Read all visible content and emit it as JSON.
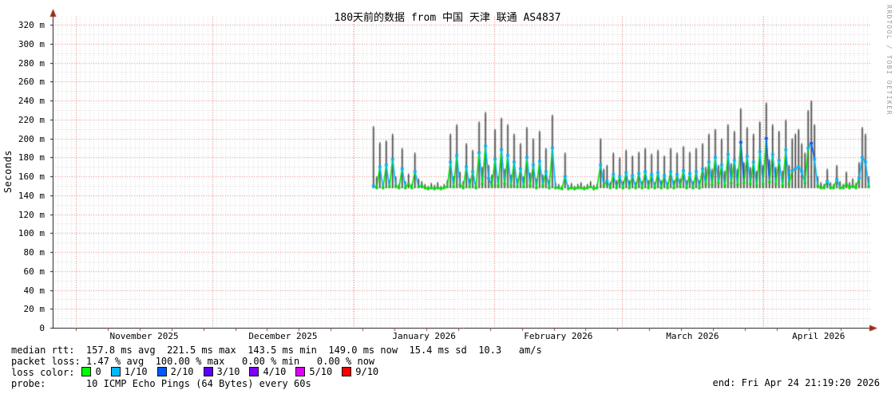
{
  "title": "180天前的数据 from 中国 天津 联通 AS4837",
  "watermark": "RRDTOOL / TOBI OETIKER",
  "end_label": "end: Fri Apr 24 21:19:20 2026",
  "legend": {
    "median_rtt_line": "median rtt:  157.8 ms avg  221.5 ms max  143.5 ms min  149.0 ms now  15.4 ms sd  10.3   am/s",
    "packet_loss_line": "packet loss: 1.47 % avg  100.00 % max   0.00 % min   0.00 % now",
    "loss_color_label": "loss color:",
    "loss_levels": [
      {
        "label": "0",
        "color": "#00ff00"
      },
      {
        "label": "1/10",
        "color": "#00b8ff"
      },
      {
        "label": "2/10",
        "color": "#0059ff"
      },
      {
        "label": "3/10",
        "color": "#5e00ff"
      },
      {
        "label": "4/10",
        "color": "#7e00ff"
      },
      {
        "label": "5/10",
        "color": "#dd00ff"
      },
      {
        "label": "9/10",
        "color": "#ff0000"
      }
    ],
    "probe_line": "probe:       10 ICMP Echo Pings (64 Bytes) every 60s"
  },
  "chart_data": {
    "type": "line",
    "title": "180天前的数据 from 中国 天津 联通 AS4837",
    "ylabel": "Seconds",
    "y_unit": "ms",
    "ylim": [
      0,
      320
    ],
    "grid": true,
    "y_ticks": [
      {
        "v": 320,
        "label": "320 m"
      },
      {
        "v": 300,
        "label": "300 m"
      },
      {
        "v": 280,
        "label": "280 m"
      },
      {
        "v": 260,
        "label": "260 m"
      },
      {
        "v": 240,
        "label": "240 m"
      },
      {
        "v": 220,
        "label": "220 m"
      },
      {
        "v": 200,
        "label": "200 m"
      },
      {
        "v": 180,
        "label": "180 m"
      },
      {
        "v": 160,
        "label": "160 m"
      },
      {
        "v": 140,
        "label": "140 m"
      },
      {
        "v": 120,
        "label": "120 m"
      },
      {
        "v": 100,
        "label": "100 m"
      },
      {
        "v": 80,
        "label": "80 m"
      },
      {
        "v": 60,
        "label": "60 m"
      },
      {
        "v": 40,
        "label": "40 m"
      },
      {
        "v": 20,
        "label": "20 m"
      },
      {
        "v": 0,
        "label": "0"
      }
    ],
    "x_range_days": 180,
    "x_month_boundaries_day": [
      5.1,
      35.1,
      66.1,
      97.1,
      125.1,
      156.1
    ],
    "x_month_labels": [
      {
        "label": "November 2025",
        "center_day": 20.1
      },
      {
        "label": "December 2025",
        "center_day": 50.6
      },
      {
        "label": "January 2026",
        "center_day": 81.6
      },
      {
        "label": "February 2026",
        "center_day": 111.1
      },
      {
        "label": "March 2026",
        "center_day": 140.6
      },
      {
        "label": "April 2026",
        "center_day": 168.3
      }
    ],
    "stats_visible": {
      "median_rtt": {
        "avg_ms": 157.8,
        "max_ms": 221.5,
        "min_ms": 143.5,
        "now_ms": 149.0,
        "sd_ms": 15.4,
        "am_s": 10.3
      },
      "packet_loss": {
        "avg_pct": 1.47,
        "max_pct": 100.0,
        "min_pct": 0.0,
        "now_pct": 0.0
      }
    },
    "loss_level_colors": {
      "0": "#00e000",
      "1": "#00b8ff",
      "2": "#0059ff"
    },
    "series": [
      {
        "name": "median rtt with smoke (per-sample: [day_offset, median_ms, smoke_max_ms, loss_level])",
        "points": [
          [
            70.5,
            150,
            213,
            1
          ],
          [
            71.2,
            148,
            160,
            0
          ],
          [
            71.9,
            170,
            196,
            1
          ],
          [
            72.6,
            148,
            152,
            0
          ],
          [
            73.3,
            172,
            198,
            1
          ],
          [
            74.0,
            149,
            156,
            0
          ],
          [
            74.7,
            178,
            205,
            1
          ],
          [
            75.4,
            150,
            160,
            0
          ],
          [
            76.1,
            148,
            152,
            0
          ],
          [
            76.8,
            168,
            190,
            1
          ],
          [
            77.5,
            148,
            155,
            0
          ],
          [
            78.2,
            152,
            163,
            0
          ],
          [
            78.9,
            148,
            152,
            0
          ],
          [
            79.6,
            165,
            185,
            1
          ],
          [
            80.4,
            149,
            158,
            0
          ],
          [
            81.1,
            150,
            155,
            0
          ],
          [
            81.8,
            148,
            152,
            0
          ],
          [
            82.5,
            147,
            150,
            0
          ],
          [
            83.2,
            148,
            153,
            0
          ],
          [
            83.9,
            147,
            151,
            0
          ],
          [
            84.6,
            148,
            154,
            0
          ],
          [
            85.3,
            147,
            150,
            0
          ],
          [
            86.0,
            148,
            152,
            0
          ],
          [
            86.7,
            149,
            156,
            0
          ],
          [
            87.4,
            175,
            205,
            1
          ],
          [
            88.1,
            149,
            160,
            0
          ],
          [
            88.8,
            182,
            215,
            1
          ],
          [
            89.5,
            151,
            165,
            0
          ],
          [
            90.2,
            148,
            155,
            0
          ],
          [
            90.9,
            170,
            195,
            1
          ],
          [
            91.6,
            149,
            158,
            0
          ],
          [
            92.3,
            165,
            188,
            1
          ],
          [
            93.0,
            148,
            154,
            0
          ],
          [
            93.7,
            185,
            218,
            1
          ],
          [
            94.4,
            152,
            170,
            0
          ],
          [
            95.1,
            192,
            228,
            1
          ],
          [
            95.8,
            158,
            172,
            1
          ],
          [
            96.5,
            150,
            162,
            0
          ],
          [
            97.2,
            178,
            210,
            1
          ],
          [
            97.9,
            150,
            160,
            0
          ],
          [
            98.6,
            188,
            222,
            1
          ],
          [
            99.3,
            152,
            168,
            0
          ],
          [
            100.0,
            182,
            215,
            1
          ],
          [
            100.7,
            150,
            162,
            0
          ],
          [
            101.4,
            175,
            205,
            1
          ],
          [
            102.1,
            149,
            158,
            0
          ],
          [
            102.8,
            168,
            195,
            1
          ],
          [
            103.5,
            149,
            160,
            0
          ],
          [
            104.2,
            180,
            212,
            1
          ],
          [
            104.9,
            150,
            164,
            0
          ],
          [
            105.6,
            172,
            200,
            1
          ],
          [
            106.3,
            148,
            158,
            0
          ],
          [
            107.0,
            176,
            208,
            1
          ],
          [
            107.7,
            150,
            162,
            0
          ],
          [
            108.4,
            165,
            190,
            1
          ],
          [
            109.1,
            148,
            156,
            0
          ],
          [
            109.8,
            190,
            225,
            1
          ],
          [
            110.5,
            148,
            154,
            0
          ],
          [
            111.2,
            148,
            152,
            0
          ],
          [
            111.9,
            147,
            150,
            0
          ],
          [
            112.6,
            160,
            185,
            1
          ],
          [
            113.3,
            147,
            151,
            0
          ],
          [
            114.0,
            148,
            153,
            0
          ],
          [
            114.7,
            147,
            150,
            0
          ],
          [
            115.4,
            148,
            152,
            0
          ],
          [
            116.1,
            148,
            154,
            0
          ],
          [
            116.8,
            147,
            150,
            0
          ],
          [
            117.5,
            148,
            152,
            0
          ],
          [
            118.2,
            149,
            155,
            0
          ],
          [
            118.9,
            147,
            151,
            0
          ],
          [
            119.6,
            148,
            152,
            0
          ],
          [
            120.4,
            172,
            200,
            1
          ],
          [
            121.1,
            150,
            168,
            0
          ],
          [
            121.8,
            155,
            172,
            1
          ],
          [
            122.5,
            148,
            154,
            0
          ],
          [
            123.2,
            162,
            185,
            1
          ],
          [
            123.9,
            148,
            156,
            0
          ],
          [
            124.6,
            160,
            180,
            1
          ],
          [
            125.3,
            148,
            155,
            0
          ],
          [
            126.0,
            164,
            188,
            1
          ],
          [
            126.7,
            148,
            156,
            0
          ],
          [
            127.4,
            161,
            182,
            1
          ],
          [
            128.1,
            148,
            154,
            0
          ],
          [
            128.8,
            163,
            186,
            1
          ],
          [
            129.5,
            148,
            155,
            0
          ],
          [
            130.2,
            165,
            190,
            1
          ],
          [
            130.9,
            148,
            156,
            0
          ],
          [
            131.6,
            162,
            184,
            1
          ],
          [
            132.3,
            148,
            154,
            0
          ],
          [
            133.0,
            164,
            188,
            1
          ],
          [
            133.7,
            148,
            156,
            0
          ],
          [
            134.4,
            161,
            182,
            1
          ],
          [
            135.1,
            148,
            154,
            0
          ],
          [
            135.8,
            165,
            190,
            1
          ],
          [
            136.5,
            148,
            156,
            0
          ],
          [
            137.2,
            162,
            185,
            1
          ],
          [
            137.9,
            149,
            158,
            0
          ],
          [
            138.6,
            166,
            192,
            1
          ],
          [
            139.3,
            148,
            156,
            0
          ],
          [
            140.0,
            163,
            186,
            1
          ],
          [
            140.7,
            148,
            155,
            0
          ],
          [
            141.4,
            165,
            190,
            1
          ],
          [
            142.1,
            148,
            156,
            0
          ],
          [
            142.8,
            168,
            195,
            1
          ],
          [
            143.5,
            152,
            170,
            0
          ],
          [
            144.2,
            175,
            205,
            1
          ],
          [
            144.9,
            151,
            168,
            0
          ],
          [
            145.6,
            180,
            210,
            1
          ],
          [
            146.3,
            153,
            172,
            0
          ],
          [
            147.0,
            172,
            200,
            1
          ],
          [
            147.7,
            150,
            166,
            0
          ],
          [
            148.4,
            183,
            215,
            1
          ],
          [
            149.1,
            153,
            174,
            0
          ],
          [
            149.8,
            177,
            208,
            1
          ],
          [
            150.5,
            151,
            168,
            0
          ],
          [
            151.2,
            196,
            232,
            2
          ],
          [
            151.9,
            153,
            175,
            0
          ],
          [
            152.6,
            181,
            212,
            1
          ],
          [
            153.3,
            152,
            170,
            0
          ],
          [
            154.0,
            175,
            205,
            1
          ],
          [
            154.7,
            150,
            166,
            0
          ],
          [
            155.4,
            186,
            218,
            1
          ],
          [
            156.1,
            152,
            172,
            0
          ],
          [
            156.8,
            200,
            238,
            2
          ],
          [
            157.5,
            154,
            178,
            0
          ],
          [
            158.2,
            183,
            215,
            1
          ],
          [
            158.9,
            152,
            170,
            0
          ],
          [
            159.6,
            177,
            208,
            1
          ],
          [
            160.4,
            150,
            166,
            0
          ],
          [
            161.1,
            188,
            220,
            1
          ],
          [
            161.8,
            152,
            172,
            0
          ],
          [
            162.5,
            166,
            200,
            1
          ],
          [
            163.2,
            168,
            205,
            1
          ],
          [
            163.9,
            170,
            210,
            1
          ],
          [
            164.6,
            165,
            195,
            1
          ],
          [
            165.3,
            153,
            185,
            0
          ],
          [
            166.0,
            190,
            230,
            1
          ],
          [
            166.7,
            195,
            240,
            2
          ],
          [
            167.4,
            178,
            215,
            1
          ],
          [
            168.1,
            150,
            160,
            0
          ],
          [
            168.8,
            148,
            154,
            0
          ],
          [
            169.5,
            148,
            152,
            0
          ],
          [
            170.2,
            155,
            168,
            1
          ],
          [
            170.9,
            148,
            154,
            0
          ],
          [
            171.6,
            148,
            152,
            0
          ],
          [
            172.3,
            157,
            172,
            1
          ],
          [
            173.0,
            148,
            155,
            0
          ],
          [
            173.7,
            148,
            152,
            0
          ],
          [
            174.4,
            152,
            165,
            0
          ],
          [
            175.1,
            148,
            154,
            0
          ],
          [
            175.8,
            150,
            158,
            0
          ],
          [
            176.5,
            148,
            153,
            0
          ],
          [
            177.2,
            158,
            175,
            1
          ],
          [
            177.9,
            180,
            212,
            1
          ],
          [
            178.6,
            175,
            205,
            1
          ],
          [
            179.3,
            149,
            160,
            0
          ]
        ]
      }
    ]
  }
}
